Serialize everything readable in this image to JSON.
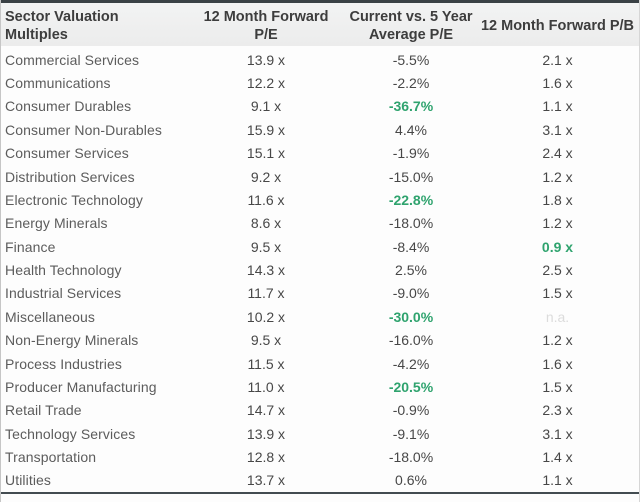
{
  "title": "Sector Valuation Multiples",
  "header": {
    "col1_line1": "Sector Valuation",
    "col1_line2": "Multiples",
    "col2_line1": "12 Month Forward",
    "col2_line2": "P/E",
    "col3_line1": "Current vs. 5 Year",
    "col3_line2": "Average P/E",
    "col4": "12 Month Forward P/B"
  },
  "colors": {
    "highlight_green": "#2fa36e",
    "na_gray": "#dcdcdc",
    "header_text": "#3d3d3d",
    "body_text": "#474747",
    "sector_text": "#5c5c5c"
  },
  "chart_data": {
    "type": "table",
    "columns": [
      "Sector Valuation Multiples",
      "12 Month Forward P/E",
      "Current vs. 5 Year Average P/E",
      "12 Month Forward P/B"
    ],
    "rows": [
      {
        "sector": "Commercial Services",
        "pe": "13.9 x",
        "avg": "-5.5%",
        "pb": "2.1 x",
        "avg_green": false,
        "pb_green": false,
        "pb_na": false
      },
      {
        "sector": "Communications",
        "pe": "12.2 x",
        "avg": "-2.2%",
        "pb": "1.6 x",
        "avg_green": false,
        "pb_green": false,
        "pb_na": false
      },
      {
        "sector": "Consumer Durables",
        "pe": "9.1 x",
        "avg": "-36.7%",
        "pb": "1.1 x",
        "avg_green": true,
        "pb_green": false,
        "pb_na": false
      },
      {
        "sector": "Consumer Non-Durables",
        "pe": "15.9 x",
        "avg": "4.4%",
        "pb": "3.1 x",
        "avg_green": false,
        "pb_green": false,
        "pb_na": false
      },
      {
        "sector": "Consumer Services",
        "pe": "15.1 x",
        "avg": "-1.9%",
        "pb": "2.4 x",
        "avg_green": false,
        "pb_green": false,
        "pb_na": false
      },
      {
        "sector": "Distribution Services",
        "pe": "9.2 x",
        "avg": "-15.0%",
        "pb": "1.2 x",
        "avg_green": false,
        "pb_green": false,
        "pb_na": false
      },
      {
        "sector": "Electronic Technology",
        "pe": "11.6 x",
        "avg": "-22.8%",
        "pb": "1.8 x",
        "avg_green": true,
        "pb_green": false,
        "pb_na": false
      },
      {
        "sector": "Energy Minerals",
        "pe": "8.6 x",
        "avg": "-18.0%",
        "pb": "1.2 x",
        "avg_green": false,
        "pb_green": false,
        "pb_na": false
      },
      {
        "sector": "Finance",
        "pe": "9.5 x",
        "avg": "-8.4%",
        "pb": "0.9 x",
        "avg_green": false,
        "pb_green": true,
        "pb_na": false
      },
      {
        "sector": "Health Technology",
        "pe": "14.3 x",
        "avg": "2.5%",
        "pb": "2.5 x",
        "avg_green": false,
        "pb_green": false,
        "pb_na": false
      },
      {
        "sector": "Industrial Services",
        "pe": "11.7 x",
        "avg": "-9.0%",
        "pb": "1.5 x",
        "avg_green": false,
        "pb_green": false,
        "pb_na": false
      },
      {
        "sector": "Miscellaneous",
        "pe": "10.2 x",
        "avg": "-30.0%",
        "pb": "n.a.",
        "avg_green": true,
        "pb_green": false,
        "pb_na": true
      },
      {
        "sector": "Non-Energy Minerals",
        "pe": "9.5 x",
        "avg": "-16.0%",
        "pb": "1.2 x",
        "avg_green": false,
        "pb_green": false,
        "pb_na": false
      },
      {
        "sector": "Process Industries",
        "pe": "11.5 x",
        "avg": "-4.2%",
        "pb": "1.6 x",
        "avg_green": false,
        "pb_green": false,
        "pb_na": false
      },
      {
        "sector": "Producer Manufacturing",
        "pe": "11.0 x",
        "avg": "-20.5%",
        "pb": "1.5 x",
        "avg_green": true,
        "pb_green": false,
        "pb_na": false
      },
      {
        "sector": "Retail Trade",
        "pe": "14.7 x",
        "avg": "-0.9%",
        "pb": "2.3 x",
        "avg_green": false,
        "pb_green": false,
        "pb_na": false
      },
      {
        "sector": "Technology Services",
        "pe": "13.9 x",
        "avg": "-9.1%",
        "pb": "3.1 x",
        "avg_green": false,
        "pb_green": false,
        "pb_na": false
      },
      {
        "sector": "Transportation",
        "pe": "12.8 x",
        "avg": "-18.0%",
        "pb": "1.4 x",
        "avg_green": false,
        "pb_green": false,
        "pb_na": false
      },
      {
        "sector": "Utilities",
        "pe": "13.7 x",
        "avg": "0.6%",
        "pb": "1.1 x",
        "avg_green": false,
        "pb_green": false,
        "pb_na": false
      }
    ]
  }
}
